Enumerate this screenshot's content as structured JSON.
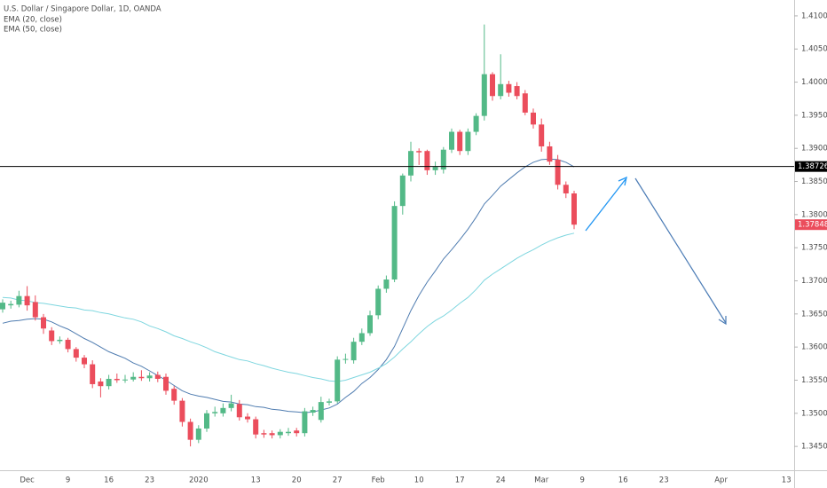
{
  "chart_data": {
    "type": "candlestick",
    "title": "U.S. Dollar / Singapore Dollar, 1D, OANDA",
    "categories": [
      null,
      null,
      null,
      "Dec",
      null,
      null,
      null,
      null,
      "9",
      null,
      null,
      null,
      null,
      "16",
      null,
      null,
      null,
      null,
      "23",
      null,
      null,
      null,
      null,
      null,
      "2020",
      null,
      null,
      null,
      null,
      null,
      null,
      "13",
      null,
      null,
      null,
      null,
      "20",
      null,
      null,
      null,
      null,
      "27",
      null,
      null,
      null,
      null,
      "Feb",
      null,
      null,
      null,
      null,
      "10",
      null,
      null,
      null,
      null,
      "17",
      null,
      null,
      null,
      null,
      "24",
      null,
      null,
      null,
      null,
      "Mar",
      null,
      null,
      null,
      null,
      "9",
      null,
      null,
      null,
      null,
      "16",
      null,
      null,
      null,
      null,
      "23",
      null,
      null,
      null,
      null,
      null,
      null,
      "Apr",
      null,
      null,
      null,
      null,
      null,
      null,
      null,
      "13",
      null
    ],
    "up_color": "#53b987",
    "down_color": "#eb4d5c",
    "open": [
      1.3657,
      1.3663,
      1.3664,
      1.3677,
      1.3668,
      1.3645,
      1.3625,
      1.3609,
      1.3611,
      1.3597,
      1.3584,
      1.3574,
      1.3548,
      1.3541,
      1.3552,
      1.355,
      1.3551,
      1.3555,
      1.3553,
      1.3558,
      1.3555,
      1.3537,
      1.3519,
      1.3487,
      1.346,
      1.3477,
      1.35,
      1.35,
      1.3508,
      1.3514,
      1.3495,
      1.3491,
      1.347,
      1.347,
      1.3467,
      1.347,
      1.3474,
      1.347,
      1.3501,
      1.349,
      1.3516,
      1.3518,
      1.3581,
      1.358,
      1.3608,
      1.3621,
      1.3648,
      1.3688,
      1.3702,
      1.3813,
      1.3859,
      1.3896,
      1.3896,
      1.3867,
      1.3868,
      1.3898,
      1.3925,
      1.3896,
      1.3925,
      1.3949,
      1.4012,
      1.3979,
      1.3997,
      1.3994,
      1.3983,
      1.3954,
      1.3936,
      1.3903,
      1.3883,
      1.3845,
      1.3832,
      null,
      null,
      null,
      null,
      null,
      null,
      null,
      null,
      null,
      null,
      null,
      null,
      null,
      null,
      null,
      null,
      null,
      null,
      null,
      null,
      null,
      null,
      null,
      null,
      null,
      null,
      null
    ],
    "high": [
      1.3672,
      1.367,
      1.3685,
      1.3692,
      1.3678,
      1.365,
      1.363,
      1.3616,
      1.3614,
      1.36,
      1.3588,
      1.358,
      1.3553,
      1.3558,
      1.356,
      1.3558,
      1.3562,
      1.3565,
      1.3562,
      1.3563,
      1.356,
      1.3541,
      1.3523,
      1.3492,
      1.3482,
      1.3505,
      1.351,
      1.3515,
      1.3528,
      1.352,
      1.35,
      1.3495,
      1.3475,
      1.3474,
      1.3476,
      1.3478,
      1.3478,
      1.3508,
      1.351,
      1.3525,
      1.3522,
      1.3586,
      1.359,
      1.3614,
      1.3628,
      1.3655,
      1.3693,
      1.3708,
      1.382,
      1.3862,
      1.391,
      1.39,
      1.3898,
      1.388,
      1.3902,
      1.393,
      1.3928,
      1.393,
      1.3953,
      1.4087,
      1.4015,
      1.4042,
      1.4002,
      1.4,
      1.3988,
      1.396,
      1.3945,
      1.391,
      1.389,
      1.385,
      1.3836,
      null,
      null,
      null,
      null,
      null,
      null,
      null,
      null,
      null,
      null,
      null,
      null,
      null,
      null,
      null,
      null,
      null,
      null,
      null,
      null,
      null,
      null,
      null,
      null,
      null,
      null,
      null
    ],
    "low": [
      1.3652,
      1.3658,
      1.366,
      1.3655,
      1.364,
      1.362,
      1.3603,
      1.3605,
      1.3592,
      1.3578,
      1.3568,
      1.3538,
      1.3524,
      1.3536,
      1.3546,
      1.3546,
      1.3548,
      1.3549,
      1.3548,
      1.3547,
      1.3528,
      1.3513,
      1.348,
      1.345,
      1.3455,
      1.3472,
      1.3495,
      1.3495,
      1.3503,
      1.3489,
      1.3486,
      1.3462,
      1.3463,
      1.3462,
      1.3462,
      1.3466,
      1.3465,
      1.3465,
      1.3496,
      1.3486,
      1.3512,
      1.3515,
      1.3575,
      1.3575,
      1.3603,
      1.3617,
      1.3642,
      1.3682,
      1.3698,
      1.38,
      1.385,
      1.3875,
      1.386,
      1.386,
      1.3862,
      1.3893,
      1.389,
      1.389,
      1.392,
      1.3942,
      1.3972,
      1.3974,
      1.3978,
      1.3974,
      1.395,
      1.393,
      1.3895,
      1.3875,
      1.3838,
      1.3825,
      1.3778,
      null,
      null,
      null,
      null,
      null,
      null,
      null,
      null,
      null,
      null,
      null,
      null,
      null,
      null,
      null,
      null,
      null,
      null,
      null,
      null,
      null,
      null,
      null,
      null,
      null,
      null,
      null
    ],
    "close": [
      1.3667,
      1.3665,
      1.3677,
      1.3663,
      1.3645,
      1.3628,
      1.3609,
      1.3611,
      1.3597,
      1.3584,
      1.3574,
      1.3544,
      1.3541,
      1.3552,
      1.355,
      1.3551,
      1.3555,
      1.3553,
      1.3557,
      1.3552,
      1.3534,
      1.3519,
      1.3487,
      1.346,
      1.3477,
      1.35,
      1.3502,
      1.3508,
      1.3515,
      1.3494,
      1.3491,
      1.3468,
      1.3468,
      1.3467,
      1.3472,
      1.3472,
      1.347,
      1.3503,
      1.3505,
      1.3517,
      1.3518,
      1.3581,
      1.3582,
      1.3608,
      1.3621,
      1.3648,
      1.3688,
      1.3702,
      1.3813,
      1.3859,
      1.3896,
      1.3894,
      1.3867,
      1.3872,
      1.3898,
      1.3925,
      1.3896,
      1.3925,
      1.3949,
      1.4012,
      1.3979,
      1.3997,
      1.3984,
      1.3979,
      1.3954,
      1.3936,
      1.3903,
      1.388,
      1.3845,
      1.3832,
      1.37848,
      null,
      null,
      null,
      null,
      null,
      null,
      null,
      null,
      null,
      null,
      null,
      null,
      null,
      null,
      null,
      null,
      null,
      null,
      null,
      null,
      null,
      null,
      null,
      null,
      null,
      null,
      null
    ],
    "series": [
      {
        "name": "EMA (20, close)",
        "color": "#4f7cb0",
        "values": [
          1.3636,
          1.3639,
          1.364,
          1.3642,
          1.3643,
          1.3642,
          1.3638,
          1.3632,
          1.3627,
          1.362,
          1.3613,
          1.3607,
          1.36,
          1.3593,
          1.3588,
          1.3583,
          1.3576,
          1.3571,
          1.3564,
          1.3557,
          1.355,
          1.3542,
          1.3534,
          1.3529,
          1.3526,
          1.3524,
          1.3521,
          1.3518,
          1.3517,
          1.3514,
          1.3513,
          1.351,
          1.3509,
          1.3506,
          1.3505,
          1.3503,
          1.3502,
          1.3501,
          1.3502,
          1.3505,
          1.3508,
          1.3514,
          1.3524,
          1.3533,
          1.3545,
          1.3554,
          1.3566,
          1.3581,
          1.3601,
          1.3628,
          1.3655,
          1.3678,
          1.3698,
          1.3715,
          1.3733,
          1.3747,
          1.3762,
          1.3778,
          1.3796,
          1.3816,
          1.3829,
          1.3843,
          1.3853,
          1.3863,
          1.3872,
          1.3879,
          1.3883,
          1.3884,
          1.3883,
          1.3879,
          1.3872,
          null,
          null,
          null,
          null,
          null,
          null,
          null,
          null,
          null,
          null,
          null,
          null,
          null,
          null,
          null,
          null,
          null,
          null,
          null,
          null,
          null,
          null,
          null,
          null,
          null,
          null,
          null
        ]
      },
      {
        "name": "EMA (50, close)",
        "color": "#7ed6df",
        "values": [
          1.3675,
          1.3674,
          1.3671,
          1.367,
          1.3667,
          1.3666,
          1.3664,
          1.3662,
          1.366,
          1.3659,
          1.3656,
          1.3655,
          1.3652,
          1.365,
          1.3647,
          1.3644,
          1.3642,
          1.3638,
          1.3632,
          1.3628,
          1.3623,
          1.3617,
          1.3613,
          1.3608,
          1.3604,
          1.3599,
          1.3593,
          1.3589,
          1.3585,
          1.3581,
          1.3579,
          1.3575,
          1.3572,
          1.3568,
          1.3565,
          1.3562,
          1.356,
          1.3557,
          1.3554,
          1.3552,
          1.3549,
          1.3548,
          1.355,
          1.3554,
          1.3558,
          1.3562,
          1.3568,
          1.3575,
          1.3585,
          1.3597,
          1.3608,
          1.362,
          1.3631,
          1.364,
          1.3647,
          1.3656,
          1.3666,
          1.3675,
          1.3687,
          1.3701,
          1.371,
          1.3718,
          1.3726,
          1.3734,
          1.3741,
          1.3747,
          1.3754,
          1.376,
          1.3765,
          1.3769,
          1.3772,
          null,
          null,
          null,
          null,
          null,
          null,
          null,
          null,
          null,
          null,
          null,
          null,
          null,
          null,
          null,
          null,
          null,
          null,
          null,
          null,
          null,
          null,
          null,
          null,
          null,
          null,
          null
        ]
      }
    ],
    "ylim": [
      1.3414,
      1.4124
    ],
    "yticks": [
      {
        "value": 1.345,
        "label": "1.34500"
      },
      {
        "value": 1.35,
        "label": "1.35000"
      },
      {
        "value": 1.355,
        "label": "1.35500"
      },
      {
        "value": 1.36,
        "label": "1.36000"
      },
      {
        "value": 1.365,
        "label": "1.36500"
      },
      {
        "value": 1.37,
        "label": "1.37000"
      },
      {
        "value": 1.375,
        "label": "1.37500"
      },
      {
        "value": 1.38,
        "label": "1.38000"
      },
      {
        "value": 1.385,
        "label": "1.38500"
      },
      {
        "value": 1.39,
        "label": "1.39000"
      },
      {
        "value": 1.395,
        "label": "1.39500"
      },
      {
        "value": 1.4,
        "label": "1.40000"
      },
      {
        "value": 1.405,
        "label": "1.40500"
      },
      {
        "value": 1.41,
        "label": "1.41000"
      }
    ],
    "grid": false,
    "horizontal_line": {
      "value": 1.38726,
      "label": "1.38726",
      "color": "#000000"
    },
    "last_price": {
      "value": 1.37848,
      "label": "1.37848"
    }
  }
}
